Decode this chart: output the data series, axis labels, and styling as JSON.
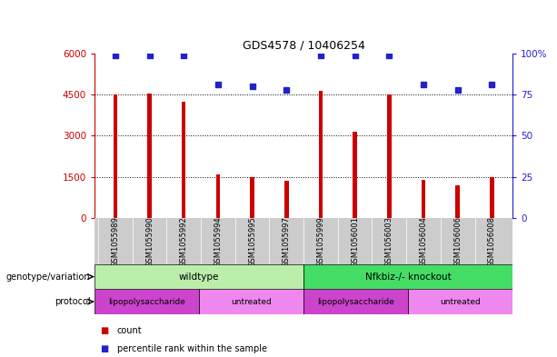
{
  "title": "GDS4578 / 10406254",
  "samples": [
    "GSM1055989",
    "GSM1055990",
    "GSM1055992",
    "GSM1055994",
    "GSM1055995",
    "GSM1055997",
    "GSM1055999",
    "GSM1056001",
    "GSM1056003",
    "GSM1056004",
    "GSM1056006",
    "GSM1056008"
  ],
  "counts": [
    4500,
    4550,
    4250,
    1600,
    1480,
    1350,
    4650,
    3150,
    4500,
    1400,
    1200,
    1470
  ],
  "percentiles": [
    99,
    99,
    99,
    81,
    80,
    78,
    99,
    99,
    99,
    81,
    78,
    81
  ],
  "ylim_left": [
    0,
    6000
  ],
  "ylim_right": [
    0,
    100
  ],
  "yticks_left": [
    0,
    1500,
    3000,
    4500,
    6000
  ],
  "ytick_labels_left": [
    "0",
    "1500",
    "3000",
    "4500",
    "6000"
  ],
  "yticks_right": [
    0,
    25,
    50,
    75,
    100
  ],
  "ytick_labels_right": [
    "0",
    "25",
    "50",
    "75",
    "100%"
  ],
  "bar_color": "#cc0000",
  "dot_color": "#2222cc",
  "bg_color": "#ffffff",
  "genotype_groups": [
    {
      "label": "wildtype",
      "start": 0,
      "end": 6,
      "color": "#bbeeaa"
    },
    {
      "label": "Nfkbiz-/- knockout",
      "start": 6,
      "end": 12,
      "color": "#44dd66"
    }
  ],
  "protocol_groups": [
    {
      "label": "lipopolysaccharide",
      "start": 0,
      "end": 3,
      "color": "#cc44cc"
    },
    {
      "label": "untreated",
      "start": 3,
      "end": 6,
      "color": "#ee88ee"
    },
    {
      "label": "lipopolysaccharide",
      "start": 6,
      "end": 9,
      "color": "#cc44cc"
    },
    {
      "label": "untreated",
      "start": 9,
      "end": 12,
      "color": "#ee88ee"
    }
  ],
  "genotype_label": "genotype/variation",
  "protocol_label": "protocol",
  "legend_items": [
    {
      "color": "#cc0000",
      "label": "count"
    },
    {
      "color": "#2222cc",
      "label": "percentile rank within the sample"
    }
  ],
  "tick_color_left": "#cc0000",
  "tick_color_right": "#2222cc",
  "xtick_bg": "#cccccc",
  "hgrid_ticks": [
    1500,
    3000,
    4500
  ]
}
